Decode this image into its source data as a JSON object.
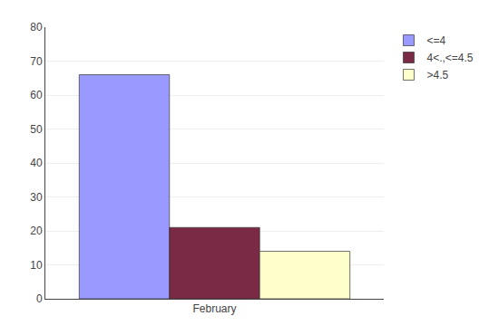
{
  "chart_data": {
    "type": "bar",
    "categories": [
      "February"
    ],
    "series": [
      {
        "name": "<=4",
        "color": "#9999ff",
        "values": [
          66
        ]
      },
      {
        "name": "4<.,<=4.5",
        "color": "#7b2a45",
        "values": [
          21
        ]
      },
      {
        "name": ">4.5",
        "color": "#ffffcc",
        "values": [
          14
        ]
      }
    ],
    "ylim": [
      0,
      80
    ],
    "yticks": [
      0,
      10,
      20,
      30,
      40,
      50,
      60,
      70,
      80
    ],
    "grid": true,
    "legend": "right"
  }
}
